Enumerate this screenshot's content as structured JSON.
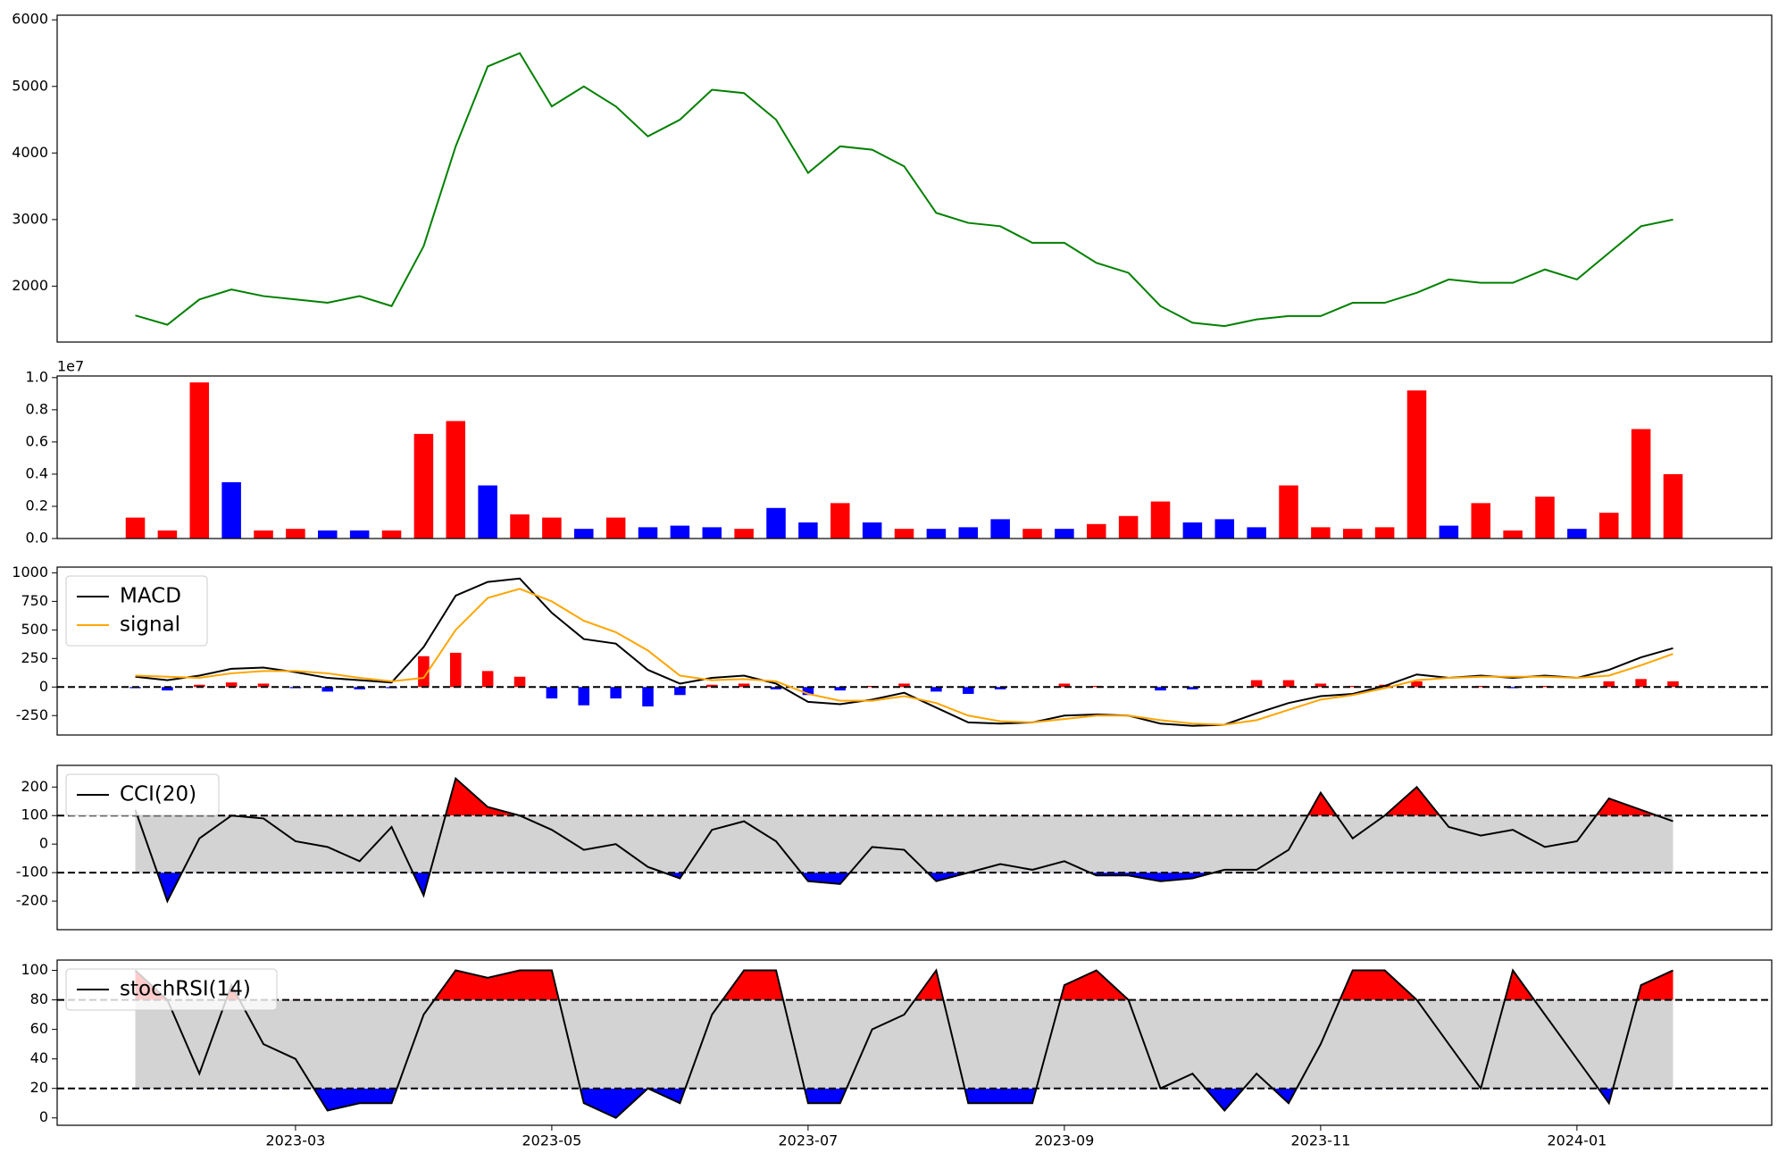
{
  "chart_data": [
    {
      "type": "line",
      "x": [
        0.75,
        1,
        1.25,
        1.5,
        1.75,
        2,
        2.25,
        2.5,
        2.75,
        3,
        3.25,
        3.5,
        3.75,
        4,
        4.25,
        4.5,
        4.75,
        5,
        5.25,
        5.5,
        5.75,
        6,
        6.25,
        6.5,
        6.75,
        7,
        7.25,
        7.5,
        7.75,
        8,
        8.25,
        8.5,
        8.75,
        9,
        9.25,
        9.5,
        9.75,
        10,
        10.25,
        10.5,
        10.75,
        11,
        11.25,
        11.5,
        11.75,
        12,
        12.25,
        12.5,
        12.75
      ],
      "values": [
        1560,
        1420,
        1800,
        1950,
        1850,
        1800,
        1750,
        1850,
        1700,
        2600,
        4100,
        5300,
        5500,
        4700,
        5000,
        4700,
        4250,
        4500,
        4950,
        4900,
        4500,
        3700,
        4100,
        4050,
        3800,
        3100,
        2950,
        2900,
        2650,
        2650,
        2350,
        2200,
        1700,
        1450,
        1400,
        1500,
        1550,
        1550,
        1750,
        1750,
        1900,
        2100,
        2050,
        2050,
        2250,
        2100,
        2500,
        2900,
        3000
      ],
      "color": "#008000",
      "xlim": [
        0.14,
        13.52
      ],
      "ylim": [
        1160,
        6070
      ],
      "yticks": [
        2000,
        3000,
        4000,
        5000,
        6000
      ]
    },
    {
      "type": "bar",
      "x": [
        0.75,
        1,
        1.25,
        1.5,
        1.75,
        2,
        2.25,
        2.5,
        2.75,
        3,
        3.25,
        3.5,
        3.75,
        4,
        4.25,
        4.5,
        4.75,
        5,
        5.25,
        5.5,
        5.75,
        6,
        6.25,
        6.5,
        6.75,
        7,
        7.25,
        7.5,
        7.75,
        8,
        8.25,
        8.5,
        8.75,
        9,
        9.25,
        9.5,
        9.75,
        10,
        10.25,
        10.5,
        10.75,
        11,
        11.25,
        11.5,
        11.75,
        12,
        12.25,
        12.5,
        12.75
      ],
      "values": [
        0.13,
        0.05,
        0.97,
        0.35,
        0.05,
        0.06,
        0.05,
        0.05,
        0.05,
        0.65,
        0.73,
        0.33,
        0.15,
        0.13,
        0.06,
        0.13,
        0.07,
        0.08,
        0.07,
        0.06,
        0.19,
        0.1,
        0.22,
        0.1,
        0.06,
        0.06,
        0.07,
        0.12,
        0.06,
        0.06,
        0.09,
        0.14,
        0.23,
        0.1,
        0.12,
        0.07,
        0.33,
        0.07,
        0.06,
        0.07,
        0.92,
        0.08,
        0.22,
        0.05,
        0.26,
        0.06,
        0.16,
        0.68,
        0.4
      ],
      "colors": [
        "#ff0000",
        "#ff0000",
        "#ff0000",
        "#0000ff",
        "#ff0000",
        "#ff0000",
        "#0000ff",
        "#0000ff",
        "#ff0000",
        "#ff0000",
        "#ff0000",
        "#0000ff",
        "#ff0000",
        "#ff0000",
        "#0000ff",
        "#ff0000",
        "#0000ff",
        "#0000ff",
        "#0000ff",
        "#ff0000",
        "#0000ff",
        "#0000ff",
        "#ff0000",
        "#0000ff",
        "#ff0000",
        "#0000ff",
        "#0000ff",
        "#0000ff",
        "#ff0000",
        "#0000ff",
        "#ff0000",
        "#ff0000",
        "#ff0000",
        "#0000ff",
        "#0000ff",
        "#0000ff",
        "#ff0000",
        "#ff0000",
        "#ff0000",
        "#ff0000",
        "#ff0000",
        "#0000ff",
        "#ff0000",
        "#ff0000",
        "#ff0000",
        "#0000ff",
        "#ff0000",
        "#ff0000",
        "#ff0000"
      ],
      "offset_label": "1e7",
      "xlim": [
        0.14,
        13.52
      ],
      "ylim": [
        0,
        1.01
      ],
      "yticks": [
        {
          "value": 0,
          "label": "0.0"
        },
        0.2,
        0.4,
        0.6,
        0.8,
        {
          "value": 1,
          "label": "1.0"
        }
      ]
    },
    {
      "type": "macd",
      "x": [
        0.75,
        1,
        1.25,
        1.5,
        1.75,
        2,
        2.25,
        2.5,
        2.75,
        3,
        3.25,
        3.5,
        3.75,
        4,
        4.25,
        4.5,
        4.75,
        5,
        5.25,
        5.5,
        5.75,
        6,
        6.25,
        6.5,
        6.75,
        7,
        7.25,
        7.5,
        7.75,
        8,
        8.25,
        8.5,
        8.75,
        9,
        9.25,
        9.5,
        9.75,
        10,
        10.25,
        10.5,
        10.75,
        11,
        11.25,
        11.5,
        11.75,
        12,
        12.25,
        12.5,
        12.75
      ],
      "series": [
        {
          "name": "MACD",
          "color": "#000000",
          "values": [
            90,
            60,
            100,
            160,
            170,
            130,
            80,
            60,
            40,
            350,
            800,
            920,
            950,
            650,
            420,
            380,
            150,
            30,
            80,
            100,
            30,
            -130,
            -150,
            -110,
            -50,
            -180,
            -310,
            -320,
            -310,
            -250,
            -240,
            -250,
            -320,
            -340,
            -330,
            -230,
            -140,
            -80,
            -60,
            10,
            110,
            80,
            100,
            80,
            100,
            80,
            150,
            260,
            340
          ]
        },
        {
          "name": "signal",
          "color": "#ffa500",
          "values": [
            100,
            90,
            80,
            120,
            140,
            140,
            120,
            80,
            50,
            80,
            500,
            780,
            860,
            750,
            580,
            480,
            320,
            100,
            60,
            70,
            50,
            -60,
            -120,
            -120,
            -80,
            -140,
            -250,
            -300,
            -310,
            -280,
            -250,
            -250,
            -290,
            -320,
            -330,
            -290,
            -200,
            -110,
            -70,
            -10,
            60,
            80,
            90,
            90,
            90,
            80,
            100,
            190,
            290
          ]
        }
      ],
      "histogram": [
        -10,
        -30,
        20,
        40,
        30,
        -10,
        -40,
        -20,
        -10,
        270,
        300,
        140,
        90,
        -100,
        -160,
        -100,
        -170,
        -70,
        20,
        30,
        -20,
        -70,
        -30,
        10,
        30,
        -40,
        -60,
        -20,
        0,
        30,
        10,
        0,
        -30,
        -20,
        0,
        60,
        60,
        30,
        10,
        20,
        50,
        0,
        10,
        -10,
        10,
        0,
        50,
        70,
        50
      ],
      "histogram_colors": {
        "positive": "#ff0000",
        "negative": "#0000ff"
      },
      "hlines": [
        0
      ],
      "xlim": [
        0.14,
        13.52
      ],
      "ylim": [
        -420,
        1050
      ],
      "yticks": [
        -250,
        0,
        250,
        500,
        750,
        1000
      ]
    },
    {
      "type": "oscillator",
      "x": [
        0.75,
        1,
        1.25,
        1.5,
        1.75,
        2,
        2.25,
        2.5,
        2.75,
        3,
        3.25,
        3.5,
        3.75,
        4,
        4.25,
        4.5,
        4.75,
        5,
        5.25,
        5.5,
        5.75,
        6,
        6.25,
        6.5,
        6.75,
        7,
        7.25,
        7.5,
        7.75,
        8,
        8.25,
        8.5,
        8.75,
        9,
        9.25,
        9.5,
        9.75,
        10,
        10.25,
        10.5,
        10.75,
        11,
        11.25,
        11.5,
        11.75,
        12,
        12.25,
        12.5,
        12.75
      ],
      "series": [
        {
          "name": "CCI(20)",
          "color": "#000000",
          "values": [
            120,
            -200,
            20,
            100,
            90,
            10,
            -10,
            -60,
            60,
            -180,
            230,
            130,
            100,
            50,
            -20,
            0,
            -80,
            -120,
            50,
            80,
            10,
            -130,
            -140,
            -10,
            -20,
            -130,
            -100,
            -70,
            -90,
            -60,
            -110,
            -110,
            -130,
            -120,
            -90,
            -90,
            -20,
            180,
            20,
            100,
            200,
            60,
            30,
            50,
            -10,
            10,
            160,
            120,
            80
          ]
        }
      ],
      "band": [
        -100,
        100
      ],
      "band_color": "#d3d3d3",
      "above_color": "#ff0000",
      "below_color": "#0000ff",
      "xlim": [
        0.14,
        13.52
      ],
      "ylim": [
        -300,
        276
      ],
      "yticks": [
        -200,
        -100,
        0,
        100,
        200
      ]
    },
    {
      "type": "oscillator",
      "x": [
        0.75,
        1,
        1.25,
        1.5,
        1.75,
        2,
        2.25,
        2.5,
        2.75,
        3,
        3.25,
        3.5,
        3.75,
        4,
        4.25,
        4.5,
        4.75,
        5,
        5.25,
        5.5,
        5.75,
        6,
        6.25,
        6.5,
        6.75,
        7,
        7.25,
        7.5,
        7.75,
        8,
        8.25,
        8.5,
        8.75,
        9,
        9.25,
        9.5,
        9.75,
        10,
        10.25,
        10.5,
        10.75,
        11,
        11.25,
        11.5,
        11.75,
        12,
        12.25,
        12.5,
        12.75
      ],
      "series": [
        {
          "name": "stochRSI(14)",
          "color": "#000000",
          "values": [
            100,
            80,
            30,
            90,
            50,
            40,
            5,
            10,
            10,
            70,
            100,
            95,
            100,
            100,
            10,
            0,
            20,
            10,
            70,
            100,
            100,
            10,
            10,
            60,
            70,
            100,
            10,
            10,
            10,
            90,
            100,
            80,
            20,
            30,
            5,
            30,
            10,
            50,
            100,
            100,
            80,
            50,
            20,
            100,
            70,
            40,
            10,
            90,
            100
          ]
        }
      ],
      "band": [
        20,
        80
      ],
      "band_color": "#d3d3d3",
      "above_color": "#ff0000",
      "below_color": "#0000ff",
      "xlim": [
        0.14,
        13.52
      ],
      "ylim": [
        -5,
        107
      ],
      "yticks": [
        0,
        20,
        40,
        60,
        80,
        100
      ],
      "xticks": [
        {
          "value": 2,
          "label": "2023-03"
        },
        {
          "value": 4,
          "label": "2023-05"
        },
        {
          "value": 6,
          "label": "2023-07"
        },
        {
          "value": 8,
          "label": "2023-09"
        },
        {
          "value": 10,
          "label": "2023-11"
        },
        {
          "value": 12,
          "label": "2024-01"
        }
      ]
    }
  ]
}
